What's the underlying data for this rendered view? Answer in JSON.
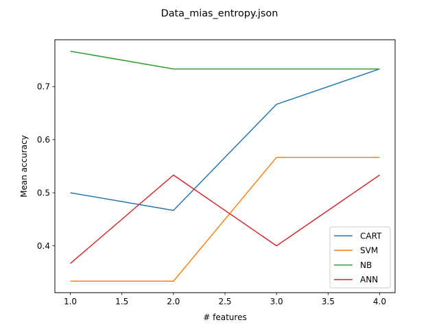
{
  "chart_data": {
    "type": "line",
    "title": "Data_mias_entropy.json",
    "xlabel": "# features",
    "ylabel": "Mean accuracy",
    "x": [
      1.0,
      2.0,
      3.0,
      4.0
    ],
    "xlim": [
      0.85,
      4.15
    ],
    "ylim": [
      0.3117,
      0.7883
    ],
    "xticks": [
      1.0,
      1.5,
      2.0,
      2.5,
      3.0,
      3.5,
      4.0
    ],
    "xtick_labels": [
      "1.0",
      "1.5",
      "2.0",
      "2.5",
      "3.0",
      "3.5",
      "4.0"
    ],
    "yticks": [
      0.4,
      0.5,
      0.6,
      0.7
    ],
    "ytick_labels": [
      "0.4",
      "0.5",
      "0.6",
      "0.7"
    ],
    "grid": false,
    "legend_position": "lower-right",
    "series": [
      {
        "name": "CART",
        "color": "#1f77b4",
        "values": [
          0.5,
          0.4667,
          0.6667,
          0.7333
        ]
      },
      {
        "name": "SVM",
        "color": "#ff7f0e",
        "values": [
          0.3333,
          0.3333,
          0.5667,
          0.5667
        ]
      },
      {
        "name": "NB",
        "color": "#2ca02c",
        "values": [
          0.7667,
          0.7333,
          0.7333,
          0.7333
        ]
      },
      {
        "name": "ANN",
        "color": "#d62728",
        "values": [
          0.3667,
          0.5333,
          0.4,
          0.5333
        ]
      }
    ]
  }
}
